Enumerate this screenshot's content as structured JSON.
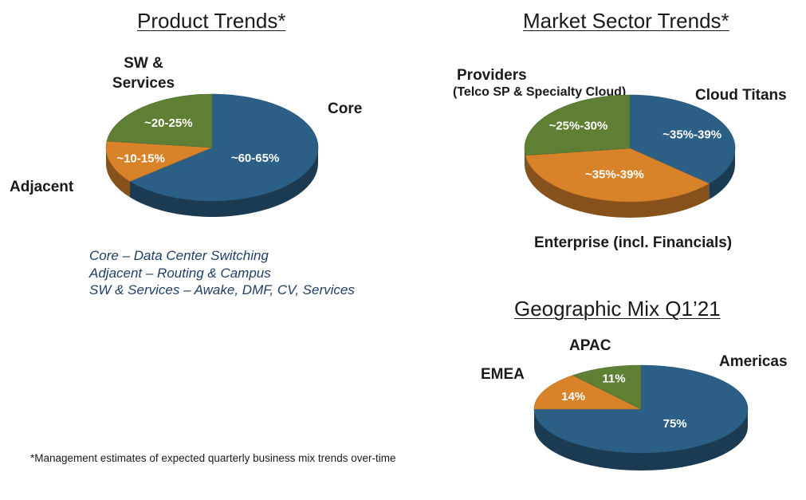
{
  "chart_data": [
    {
      "type": "pie",
      "title": "Product Trends*",
      "categories": [
        "Core",
        "Adjacent",
        "SW & Services"
      ],
      "values": [
        62.5,
        12.5,
        22.5
      ],
      "value_labels": [
        "~60-65%",
        "~10-15%",
        "~20-25%"
      ],
      "colors": [
        "#2c5f85",
        "#d8832a",
        "#5e7f34"
      ],
      "notes": [
        "Core – Data Center Switching",
        "Adjacent – Routing & Campus",
        "SW & Services – Awake, DMF, CV, Services"
      ]
    },
    {
      "type": "pie",
      "title": "Market Sector Trends*",
      "categories": [
        "Cloud Titans",
        "Enterprise (incl. Financials)",
        "Providers"
      ],
      "sublabels": [
        "",
        "",
        "(Telco SP & Specialty Cloud)"
      ],
      "values": [
        37,
        37,
        27.5
      ],
      "value_labels": [
        "~35%-39%",
        "~35%-39%",
        "~25%-30%"
      ],
      "colors": [
        "#2c5f85",
        "#d8832a",
        "#5e7f34"
      ]
    },
    {
      "type": "pie",
      "title": "Geographic Mix Q1’21",
      "categories": [
        "Americas",
        "EMEA",
        "APAC"
      ],
      "values": [
        75,
        14,
        11
      ],
      "value_labels": [
        "75%",
        "14%",
        "11%"
      ],
      "colors": [
        "#2c5f85",
        "#d8832a",
        "#5e7f34"
      ]
    }
  ],
  "footnote": "*Management estimates of expected quarterly business mix trends over-time"
}
